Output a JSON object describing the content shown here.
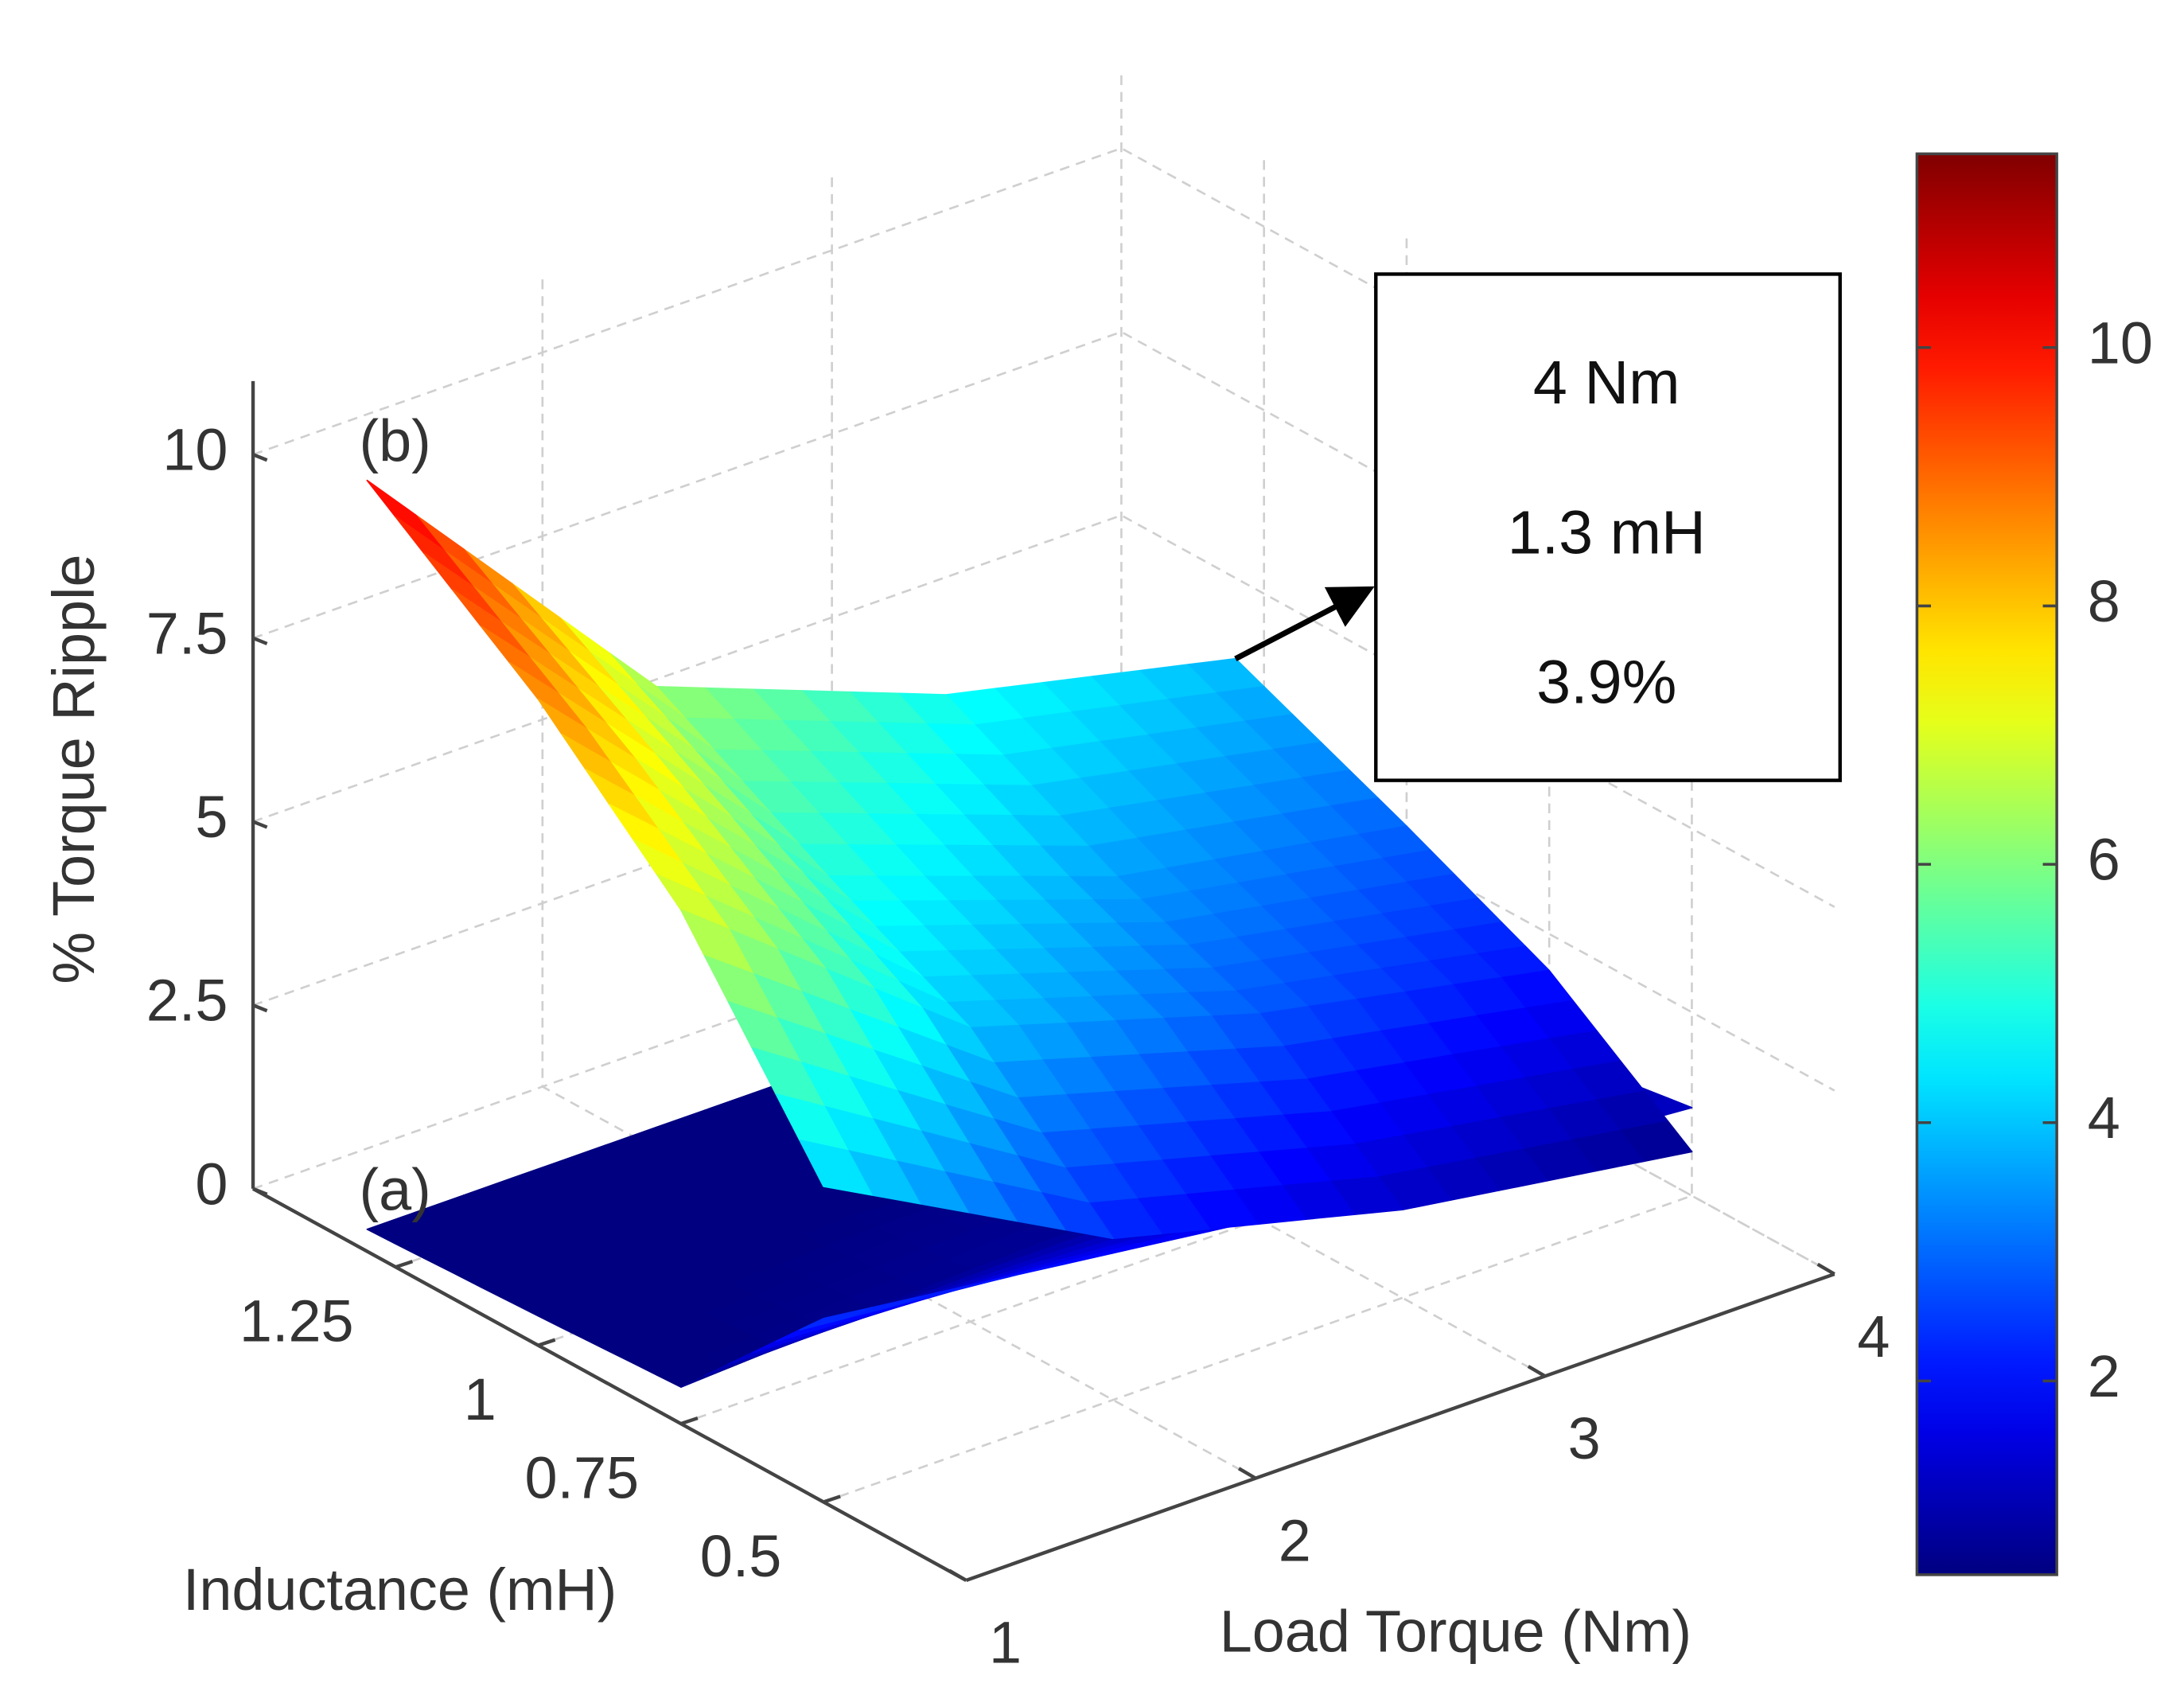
{
  "chart_data": {
    "type": "surface",
    "xlabel": "Load Torque (Nm)",
    "ylabel": "Inductance (mH)",
    "zlabel": "% Torque Ripple",
    "x": [
      1,
      2,
      3,
      4
    ],
    "y": [
      0.5,
      0.75,
      1,
      1.3
    ],
    "series": [
      {
        "name": "(a)",
        "z": [
          [
            2.5,
            2.0,
            1.5,
            1.2
          ],
          [
            0.5,
            0.7,
            0.8,
            0.9
          ],
          [
            0.4,
            0.5,
            0.5,
            0.6
          ],
          [
            0.3,
            0.3,
            0.3,
            0.4
          ]
        ]
      },
      {
        "name": "(b)",
        "z": [
          [
            4.3,
            2.2,
            1.2,
            0.6
          ],
          [
            7.0,
            4.0,
            2.8,
            2.0
          ],
          [
            8.8,
            5.0,
            3.6,
            2.9
          ],
          [
            10.5,
            6.3,
            4.8,
            3.9
          ]
        ]
      }
    ],
    "xlim": [
      1,
      4
    ],
    "xticks": [
      1,
      2,
      3,
      4
    ],
    "ylim": [
      0.25,
      1.5
    ],
    "yticks": [
      0.5,
      0.75,
      1,
      1.25
    ],
    "zlim": [
      0,
      11
    ],
    "zticks": [
      0,
      2.5,
      5,
      7.5,
      10
    ],
    "grid": true,
    "colormap": "jet",
    "clim": [
      0.5,
      11.5
    ],
    "cticks": [
      2,
      4,
      6,
      8,
      10
    ],
    "annotation": {
      "lines": [
        "4 Nm",
        "1.3 mH",
        "3.9%"
      ],
      "x": 4,
      "y": 1.3,
      "z": 3.9
    }
  }
}
